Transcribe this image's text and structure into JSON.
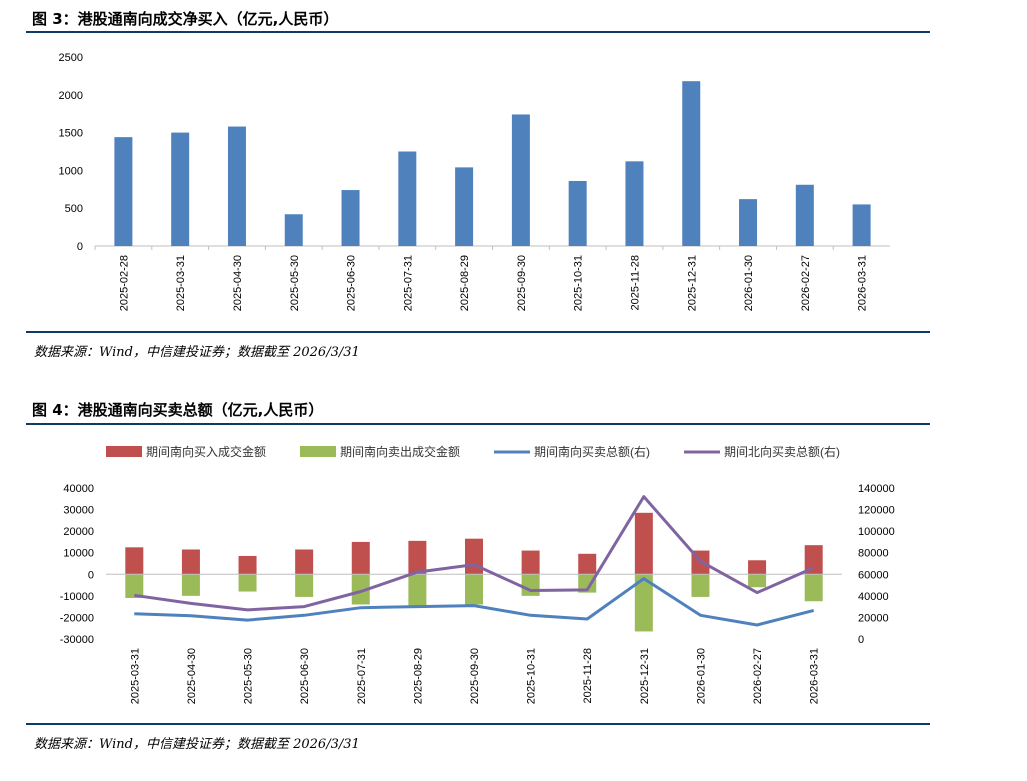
{
  "figure1": {
    "title": "图 3：港股通南向成交净买入（亿元,人民币）",
    "source": "数据来源：Wind，中信建投证券；数据截至 2026/3/31"
  },
  "figure2": {
    "title": "图 4：港股通南向买卖总额（亿元,人民币）",
    "source": "数据来源：Wind，中信建投证券；数据截至 2026/3/31"
  },
  "colors": {
    "bar_blue": "#4f81bd",
    "buy_red": "#c0504d",
    "sell_green": "#9bbb59",
    "south_line": "#4f81bd",
    "north_line": "#8064a2",
    "rule": "#0d3b66",
    "axis": "#bfbfbf"
  },
  "chart_data": [
    {
      "type": "bar",
      "categories": [
        "2025-02-28",
        "2025-03-31",
        "2025-04-30",
        "2025-05-30",
        "2025-06-30",
        "2025-07-31",
        "2025-08-29",
        "2025-09-30",
        "2025-10-31",
        "2025-11-28",
        "2025-12-31",
        "2026-01-30",
        "2026-02-27",
        "2026-03-31"
      ],
      "values": [
        1440,
        1500,
        1580,
        420,
        740,
        1250,
        1040,
        1740,
        860,
        1120,
        2180,
        620,
        810,
        550
      ],
      "ylim": [
        0,
        2500
      ],
      "yticks": [
        0,
        500,
        1000,
        1500,
        2000,
        2500
      ],
      "grid": false,
      "legend": "none"
    },
    {
      "type": "bar",
      "categories": [
        "2025-03-31",
        "2025-04-30",
        "2025-05-30",
        "2025-06-30",
        "2025-07-31",
        "2025-08-29",
        "2025-09-30",
        "2025-10-31",
        "2025-11-28",
        "2025-12-31",
        "2026-01-30",
        "2026-02-27",
        "2026-03-31"
      ],
      "series": [
        {
          "name": "期间南向买入成交金额",
          "type": "bar",
          "axis": "left",
          "values": [
            12500,
            11500,
            8500,
            11500,
            15000,
            15500,
            16500,
            11000,
            9500,
            28500,
            11000,
            6500,
            13500
          ]
        },
        {
          "name": "期间南向卖出成交金额",
          "type": "bar",
          "axis": "left",
          "values": [
            -11000,
            -10000,
            -8000,
            -10500,
            -14000,
            -14500,
            -14000,
            -10000,
            -8500,
            -26500,
            -10500,
            -6000,
            -12500
          ]
        },
        {
          "name": "期间南向买卖总额(右)",
          "type": "line",
          "axis": "right",
          "values": [
            23500,
            21500,
            17500,
            22000,
            29000,
            30000,
            31000,
            22000,
            18500,
            56000,
            22000,
            13000,
            26500
          ]
        },
        {
          "name": "期间北向买卖总额(右)",
          "type": "line",
          "axis": "right",
          "values": [
            40500,
            33000,
            27000,
            30000,
            44000,
            62000,
            69000,
            45000,
            45500,
            132000,
            72000,
            43000,
            66000
          ]
        }
      ],
      "ylim_left": [
        -30000,
        40000
      ],
      "yticks_left": [
        -30000,
        -20000,
        -10000,
        0,
        10000,
        20000,
        30000,
        40000
      ],
      "ylim_right": [
        0,
        140000
      ],
      "yticks_right": [
        0,
        20000,
        40000,
        60000,
        80000,
        100000,
        120000,
        140000
      ],
      "grid": false,
      "legend": "top"
    }
  ]
}
